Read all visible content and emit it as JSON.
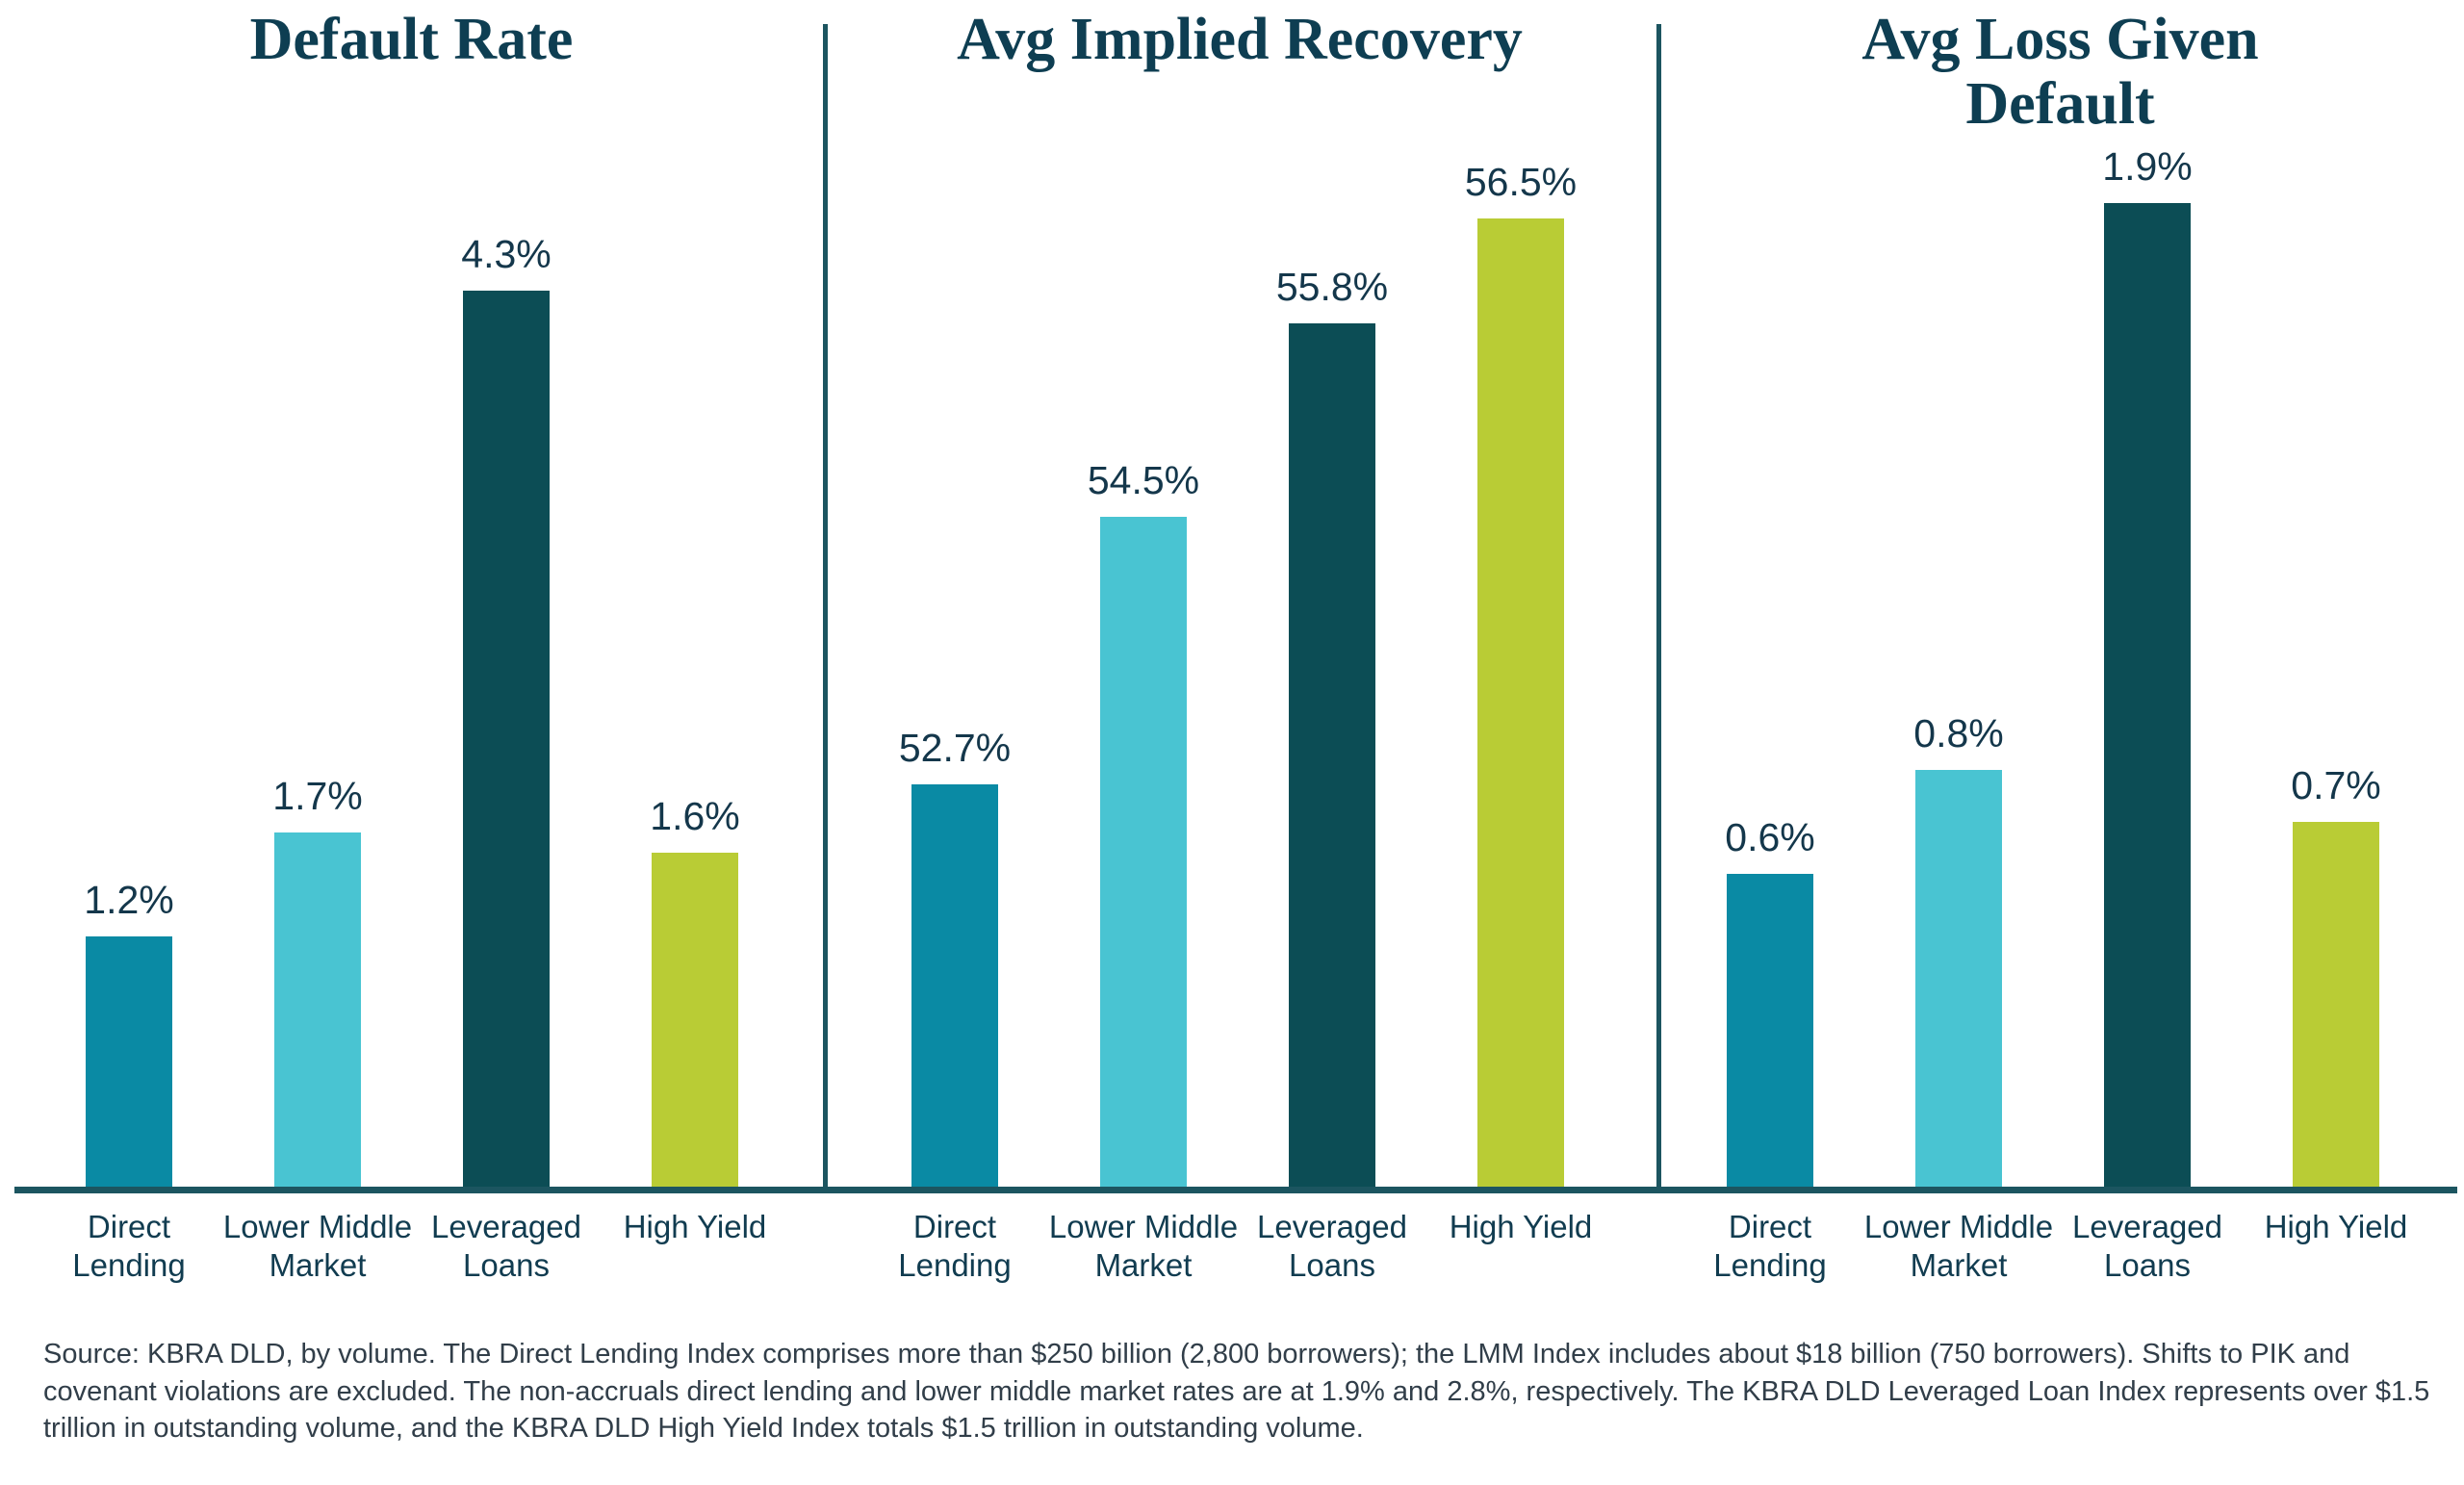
{
  "chart_data": [
    {
      "type": "bar",
      "title": "Default Rate",
      "categories": [
        "Direct Lending",
        "Lower Middle Market",
        "Leveraged Loans",
        "High Yield"
      ],
      "values": [
        1.2,
        1.7,
        4.3,
        1.6
      ],
      "value_labels": [
        "1.2%",
        "1.7%",
        "4.3%",
        "1.6%"
      ],
      "unit": "%",
      "ylim": [
        0,
        5
      ],
      "grid": false,
      "legend": "none"
    },
    {
      "type": "bar",
      "title": "Avg Implied Recovery",
      "categories": [
        "Direct Lending",
        "Lower Middle Market",
        "Leveraged Loans",
        "High Yield"
      ],
      "values": [
        52.7,
        54.5,
        55.8,
        56.5
      ],
      "value_labels": [
        "52.7%",
        "54.5%",
        "55.8%",
        "56.5%"
      ],
      "unit": "%",
      "ylim": [
        50,
        57
      ],
      "grid": false,
      "legend": "none"
    },
    {
      "type": "bar",
      "title": "Avg Loss Given Default",
      "categories": [
        "Direct Lending",
        "Lower Middle Market",
        "Leveraged Loans",
        "High Yield"
      ],
      "values": [
        0.6,
        0.8,
        1.9,
        0.7
      ],
      "value_labels": [
        "0.6%",
        "0.8%",
        "1.9%",
        "0.7%"
      ],
      "unit": "%",
      "ylim": [
        0,
        2
      ],
      "grid": false,
      "legend": "none"
    }
  ],
  "colors": {
    "direct_lending": "#0a8aa4",
    "lower_middle_market": "#49c4d2",
    "leveraged_loans": "#0c4d55",
    "high_yield": "#b9cc35",
    "axis_line": "#1c5560",
    "title_text": "#0e3e52",
    "value_label_text": "#14374b",
    "category_label_text": "#113c50",
    "source_text": "#313e49"
  },
  "source_note": "Source: KBRA DLD, by volume. The Direct Lending Index comprises more than $250 billion (2,800 borrowers); the LMM Index includes about $18 billion (750 borrowers). Shifts to PIK and covenant violations are excluded. The non-accruals direct lending and lower middle market rates are at 1.9% and 2.8%, respectively. The KBRA DLD Leveraged Loan Index represents over $1.5 trillion in outstanding volume, and the KBRA DLD High Yield Index totals $1.5 trillion in outstanding volume."
}
